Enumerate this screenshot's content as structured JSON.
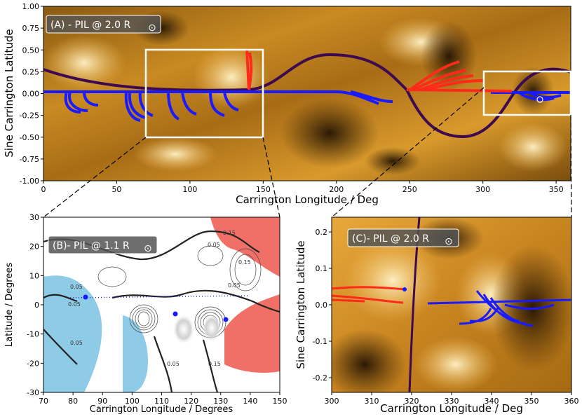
{
  "panel_a": {
    "title": "(A) - PIL @ 2.0 R",
    "sun_symbol": "⊙",
    "xlabel": "Carrington Longitude / Deg",
    "ylabel": "Sine Carrington Latitude",
    "xticks": [
      "0",
      "50",
      "100",
      "150",
      "200",
      "250",
      "300",
      "350"
    ],
    "yticks": [
      "1.00",
      "0.75",
      "0.50",
      "0.25",
      "0.00",
      "-0.25",
      "-0.50",
      "-0.75",
      "-1.00"
    ]
  },
  "panel_b": {
    "title": "(B)- PIL @ 1.1 R",
    "sun_symbol": "⊙",
    "xlabel": "Carrington Longitude / Degrees",
    "ylabel": "Latitude / Degrees",
    "xticks": [
      "70",
      "80",
      "90",
      "100",
      "110",
      "120",
      "130",
      "140",
      "150"
    ],
    "yticks": [
      "30",
      "20",
      "10",
      "0",
      "-10",
      "-20",
      "-30"
    ],
    "contour_labels": [
      "0.05",
      "0.15",
      "0.05",
      "0.15",
      "0.05",
      "0.05",
      "0.05",
      "0.05",
      "0.15"
    ]
  },
  "panel_c": {
    "title": "(C)- PIL @ 2.0 R",
    "sun_symbol": "⊙",
    "xlabel": "Carrington Longitude / Deg",
    "ylabel": "Sine Carrington Latitude",
    "xticks": [
      "300",
      "310",
      "320",
      "330",
      "340",
      "350",
      "360"
    ],
    "yticks": [
      "0.2",
      "0.1",
      "0.0",
      "-0.1",
      "-0.2"
    ]
  },
  "colors": {
    "pil": "#3d0a4f",
    "positive": "#ff2a1a",
    "negative": "#1a1aff",
    "positive_region": "#f07068",
    "negative_region": "#8ecbe6",
    "box": "#ffffff"
  }
}
